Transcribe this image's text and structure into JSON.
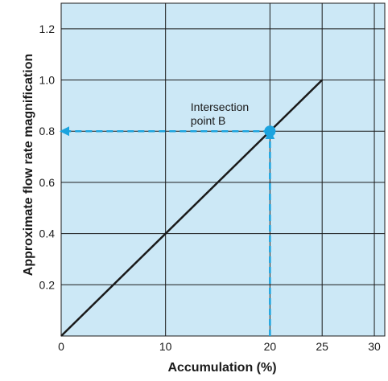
{
  "chart_data": {
    "type": "line",
    "title": "",
    "xlabel": "Accumulation (%)",
    "ylabel": "Approximate flow rate magnification",
    "xlim": [
      0,
      31
    ],
    "ylim": [
      0,
      1.3
    ],
    "x_ticks": [
      0,
      10,
      20,
      25,
      30
    ],
    "y_ticks": [
      0.2,
      0.4,
      0.6,
      0.8,
      1.0,
      1.2
    ],
    "y_tick_labels": [
      "0.2",
      "0.4",
      "0.6",
      "0.8",
      "1.0",
      "1.2"
    ],
    "grid": true,
    "background_color": "#cce8f6",
    "line_color": "#1a1a1a",
    "guide_color": "#1ba4df",
    "series": [
      {
        "x": [
          0,
          25
        ],
        "y": [
          0,
          1.0
        ]
      }
    ],
    "guide_lines": [
      {
        "from": [
          20,
          0
        ],
        "to": [
          20,
          0.8
        ],
        "style": "dashed",
        "arrow": "end"
      },
      {
        "from": [
          20,
          0.8
        ],
        "to": [
          0,
          0.8
        ],
        "style": "dashed",
        "arrow": "end"
      }
    ],
    "highlight_point": {
      "x": 20,
      "y": 0.8
    },
    "annotations": [
      {
        "lines": [
          "Intersection",
          "point B"
        ],
        "x": 12.4,
        "y": 0.88
      }
    ]
  }
}
